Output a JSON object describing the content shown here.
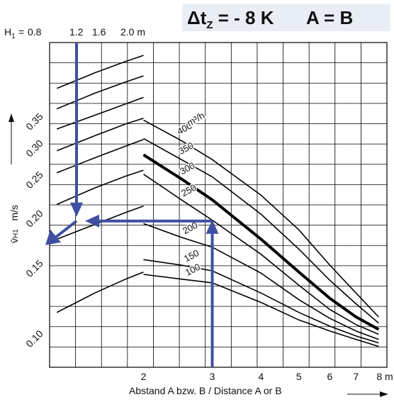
{
  "title": {
    "delta": "Δt",
    "subscript": "Z",
    "value": "= - 8 K",
    "condition": "A = B"
  },
  "heights": {
    "prefix": "H",
    "prefix_sub": "1",
    "eq": "=",
    "values": [
      "0.8",
      "1.2",
      "1.6",
      "2.0 m"
    ]
  },
  "xlabel": "Abstand A bzw. B / Distance A or B",
  "yunit": "m/s",
  "ylabel_symbol": "v̄",
  "ylabel_sub": "H1",
  "colors": {
    "curve": "#000000",
    "grid": "#000000",
    "arrow": "#3f4fa0",
    "title_bg": "#e9eef6"
  },
  "chart_data": {
    "type": "line",
    "title": "Δtz = - 8 K   A = B",
    "xlabel": "Abstand A bzw. B / Distance A or B",
    "ylabel": "v̄H1 m/s",
    "xscale": "log",
    "yscale": "log",
    "x_ticks": [
      "2",
      "3",
      "4",
      "5",
      "6",
      "7",
      "8 m"
    ],
    "x_tick_values": [
      2,
      3,
      4,
      5,
      6,
      7,
      8
    ],
    "y_ticks": [
      "0.35",
      "0.30",
      "0.25",
      "0.20",
      "0.15",
      "0.10"
    ],
    "y_tick_values": [
      0.35,
      0.3,
      0.25,
      0.2,
      0.15,
      0.1
    ],
    "xlim": [
      1.15,
      8.4
    ],
    "ylim": [
      0.086,
      0.56
    ],
    "volume_flow_unit": "m³/h",
    "series": [
      {
        "name": "400",
        "points": [
          [
            2.0,
            0.358
          ],
          [
            2.5,
            0.318
          ],
          [
            3.0,
            0.285
          ],
          [
            4.0,
            0.232
          ],
          [
            5.0,
            0.19
          ],
          [
            6.0,
            0.155
          ],
          [
            7.0,
            0.132
          ],
          [
            8.0,
            0.115
          ]
        ]
      },
      {
        "name": "350",
        "points": [
          [
            2.0,
            0.322
          ],
          [
            2.5,
            0.285
          ],
          [
            3.0,
            0.258
          ],
          [
            4.0,
            0.208
          ],
          [
            5.0,
            0.17
          ],
          [
            6.0,
            0.142
          ],
          [
            7.0,
            0.124
          ],
          [
            8.0,
            0.111
          ]
        ]
      },
      {
        "name": "300",
        "points": [
          [
            2.0,
            0.293
          ],
          [
            2.5,
            0.255
          ],
          [
            3.0,
            0.226
          ],
          [
            4.0,
            0.18
          ],
          [
            5.0,
            0.149
          ],
          [
            6.0,
            0.128
          ],
          [
            7.0,
            0.115
          ],
          [
            8.0,
            0.107
          ]
        ],
        "bold": true
      },
      {
        "name": "250",
        "points": [
          [
            2.0,
            0.262
          ],
          [
            2.5,
            0.226
          ],
          [
            3.0,
            0.201
          ],
          [
            4.0,
            0.165
          ],
          [
            5.0,
            0.138
          ],
          [
            6.0,
            0.12
          ],
          [
            7.0,
            0.11
          ],
          [
            8.0,
            0.104
          ]
        ]
      },
      {
        "name": "200",
        "points": [
          [
            2.0,
            0.197
          ],
          [
            2.5,
            0.182
          ],
          [
            3.0,
            0.172
          ],
          [
            4.0,
            0.148
          ],
          [
            5.0,
            0.127
          ],
          [
            6.0,
            0.114
          ],
          [
            7.0,
            0.106
          ],
          [
            8.0,
            0.101
          ]
        ]
      },
      {
        "name": "150",
        "points": [
          [
            2.0,
            0.16
          ],
          [
            2.5,
            0.155
          ],
          [
            3.0,
            0.15
          ],
          [
            4.0,
            0.132
          ],
          [
            5.0,
            0.118
          ],
          [
            6.0,
            0.109
          ],
          [
            7.0,
            0.103
          ],
          [
            8.0,
            0.099
          ]
        ]
      },
      {
        "name": "100",
        "points": [
          [
            2.0,
            0.147
          ],
          [
            2.5,
            0.143
          ],
          [
            3.0,
            0.14
          ],
          [
            4.0,
            0.125
          ],
          [
            5.0,
            0.113
          ],
          [
            6.0,
            0.106
          ],
          [
            7.0,
            0.101
          ],
          [
            8.0,
            0.097
          ]
        ]
      }
    ],
    "near_field": [
      {
        "points": [
          [
            1.2,
            0.43
          ],
          [
            1.5,
            0.47
          ],
          [
            1.8,
            0.502
          ],
          [
            2.0,
            0.52
          ]
        ]
      },
      {
        "points": [
          [
            1.2,
            0.382
          ],
          [
            1.5,
            0.418
          ],
          [
            1.8,
            0.446
          ],
          [
            2.0,
            0.462
          ]
        ]
      },
      {
        "points": [
          [
            1.2,
            0.34
          ],
          [
            1.5,
            0.368
          ],
          [
            1.8,
            0.393
          ],
          [
            2.0,
            0.408
          ]
        ]
      },
      {
        "points": [
          [
            1.2,
            0.3
          ],
          [
            1.5,
            0.327
          ],
          [
            1.8,
            0.35
          ],
          [
            2.0,
            0.362
          ]
        ]
      },
      {
        "points": [
          [
            1.2,
            0.264
          ],
          [
            1.5,
            0.288
          ],
          [
            1.8,
            0.308
          ],
          [
            2.0,
            0.32
          ]
        ]
      },
      {
        "points": [
          [
            1.2,
            0.22
          ],
          [
            1.5,
            0.242
          ],
          [
            1.8,
            0.259
          ],
          [
            2.0,
            0.268
          ]
        ]
      },
      {
        "points": [
          [
            1.2,
            0.18
          ],
          [
            1.5,
            0.196
          ],
          [
            1.8,
            0.21
          ],
          [
            2.0,
            0.218
          ]
        ]
      },
      {
        "points": [
          [
            1.2,
            0.118
          ],
          [
            1.5,
            0.132
          ],
          [
            1.8,
            0.143
          ],
          [
            2.0,
            0.149
          ]
        ]
      }
    ],
    "example_reading": {
      "distance": 3.0,
      "height": 1.2,
      "velocity": 0.2
    }
  }
}
